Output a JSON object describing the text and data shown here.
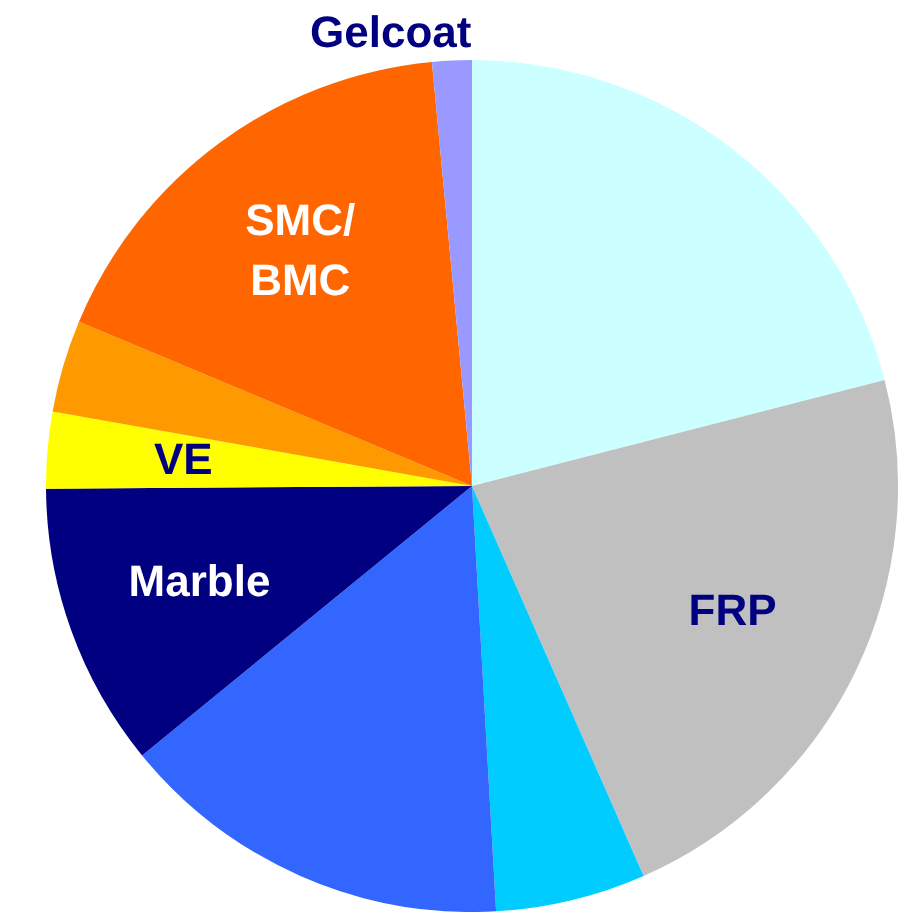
{
  "chart_data": {
    "type": "pie",
    "categories": [
      null,
      "FRP",
      null,
      null,
      "Marble",
      "VE",
      null,
      "SMC/BMC",
      "Gelcoat"
    ],
    "values": [
      21,
      22.4,
      5.7,
      15,
      10.8,
      2.9,
      3.5,
      17.2,
      1.5
    ],
    "colors": [
      "#ccffff",
      "#c0c0c0",
      "#00ccff",
      "#3366ff",
      "#000080",
      "#ffff00",
      "#ff9900",
      "#ff6600",
      "#9999ff"
    ],
    "legend": false
  }
}
